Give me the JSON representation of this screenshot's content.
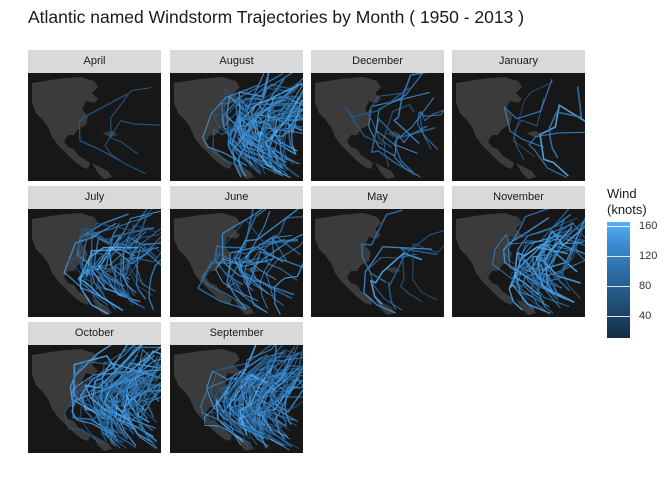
{
  "title": "Atlantic named Windstorm Trajectories by Month ( 1950 - 2013 )",
  "chart_data": {
    "type": "faceted-map-lines",
    "title": "Atlantic named Windstorm Trajectories by Month ( 1950 - 2013 )",
    "facet_labels": [
      "April",
      "August",
      "December",
      "January",
      "July",
      "June",
      "May",
      "November",
      "October",
      "September"
    ],
    "storm_density": {
      "April": 0.04,
      "August": 0.85,
      "December": 0.15,
      "January": 0.08,
      "July": 0.45,
      "June": 0.3,
      "May": 0.1,
      "November": 0.45,
      "October": 0.85,
      "September": 1.0
    },
    "legend": {
      "title": [
        "Wind",
        "(knots)"
      ],
      "ticks": [
        40,
        80,
        120,
        160
      ],
      "range": [
        10,
        165
      ],
      "low_color": "#132b43",
      "high_color": "#56b1f7"
    },
    "colors": {
      "panel_bg": "#171717",
      "land": "#3b3b3b",
      "strip_bg": "#d9d9d9"
    }
  }
}
